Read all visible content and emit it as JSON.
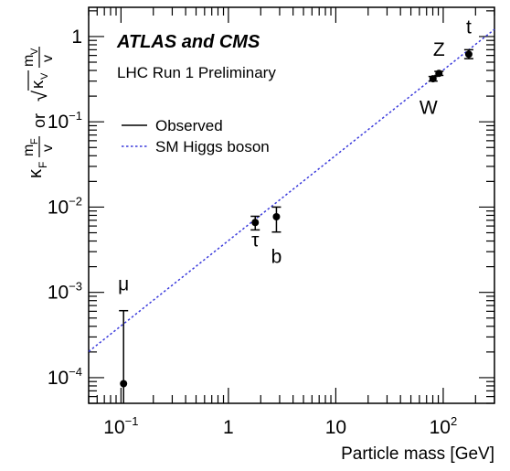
{
  "chart_data": {
    "type": "scatter",
    "title": "ATLAS and CMS",
    "subtitle": "LHC Run 1 Preliminary",
    "xlabel": "Particle mass [GeV]",
    "ylabel_parts": {
      "kf": "κ",
      "kf_sub": "F",
      "mf_num": "m",
      "mf_sub": "F",
      "den_v": "v",
      "or": "or",
      "mv_num": "m",
      "mv_sub": "V",
      "kv": "κ",
      "kv_sub": "V",
      "sqrt": "√"
    },
    "xscale": "log",
    "yscale": "log",
    "xlim": [
      0.05,
      300
    ],
    "ylim": [
      5e-05,
      2.2
    ],
    "x_ticks": [
      {
        "value": 0.1,
        "base": "10",
        "exp": "−1"
      },
      {
        "value": 1,
        "base": "1",
        "exp": ""
      },
      {
        "value": 10,
        "base": "10",
        "exp": ""
      },
      {
        "value": 100,
        "base": "10",
        "exp": "2"
      }
    ],
    "y_ticks": [
      {
        "value": 1,
        "base": "1",
        "exp": ""
      },
      {
        "value": 0.1,
        "base": "10",
        "exp": "−1"
      },
      {
        "value": 0.01,
        "base": "10",
        "exp": "−2"
      },
      {
        "value": 0.001,
        "base": "10",
        "exp": "−3"
      },
      {
        "value": 0.0001,
        "base": "10",
        "exp": "−4"
      }
    ],
    "legend": {
      "placement": "upper-left",
      "entries": [
        {
          "label": "Observed",
          "style": "solid",
          "color": "#000000"
        },
        {
          "label": "SM Higgs boson",
          "style": "dotted",
          "color": "#3b3bdc"
        }
      ]
    },
    "sm_line": {
      "slope_per_gev": 0.004044,
      "color": "#3b3bdc"
    },
    "points": [
      {
        "label": "μ",
        "x": 0.1057,
        "y": 8.5e-05,
        "ylo": 1e-07,
        "yhi": 0.00061
      },
      {
        "label": "τ",
        "x": 1.777,
        "y": 0.0066,
        "ylo": 0.0054,
        "yhi": 0.0078
      },
      {
        "label": "b",
        "x": 2.8,
        "y": 0.0077,
        "ylo": 0.0051,
        "yhi": 0.01
      },
      {
        "label": "W",
        "x": 80.4,
        "y": 0.32,
        "ylo": 0.3,
        "yhi": 0.34
      },
      {
        "label": "Z",
        "x": 91.2,
        "y": 0.37,
        "ylo": 0.35,
        "yhi": 0.39
      },
      {
        "label": "t",
        "x": 173.0,
        "y": 0.62,
        "ylo": 0.55,
        "yhi": 0.7
      }
    ]
  }
}
